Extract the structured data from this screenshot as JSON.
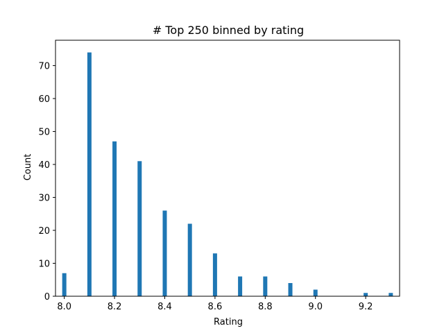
{
  "chart_data": {
    "type": "bar",
    "title": "# Top 250 binned by rating",
    "xlabel": "Rating",
    "ylabel": "Count",
    "xlim": [
      7.965,
      9.335
    ],
    "ylim": [
      0,
      77.7
    ],
    "x_ticks": [
      {
        "value": 8.0,
        "label": "8.0"
      },
      {
        "value": 8.2,
        "label": "8.2"
      },
      {
        "value": 8.4,
        "label": "8.4"
      },
      {
        "value": 8.6,
        "label": "8.6"
      },
      {
        "value": 8.8,
        "label": "8.8"
      },
      {
        "value": 9.0,
        "label": "9.0"
      },
      {
        "value": 9.2,
        "label": "9.2"
      }
    ],
    "y_ticks": [
      {
        "value": 0,
        "label": "0"
      },
      {
        "value": 10,
        "label": "10"
      },
      {
        "value": 20,
        "label": "20"
      },
      {
        "value": 30,
        "label": "30"
      },
      {
        "value": 40,
        "label": "40"
      },
      {
        "value": 50,
        "label": "50"
      },
      {
        "value": 60,
        "label": "60"
      },
      {
        "value": 70,
        "label": "70"
      }
    ],
    "bars": [
      {
        "x": 8.0,
        "value": 7
      },
      {
        "x": 8.1,
        "value": 74
      },
      {
        "x": 8.2,
        "value": 47
      },
      {
        "x": 8.3,
        "value": 41
      },
      {
        "x": 8.4,
        "value": 26
      },
      {
        "x": 8.5,
        "value": 22
      },
      {
        "x": 8.6,
        "value": 13
      },
      {
        "x": 8.7,
        "value": 6
      },
      {
        "x": 8.8,
        "value": 6
      },
      {
        "x": 8.9,
        "value": 4
      },
      {
        "x": 9.0,
        "value": 2
      },
      {
        "x": 9.2,
        "value": 1
      },
      {
        "x": 9.3,
        "value": 1
      }
    ],
    "bar_color": "#1f77b4",
    "grid": false
  }
}
